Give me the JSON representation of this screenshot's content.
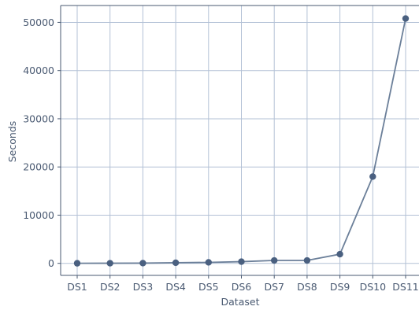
{
  "chart_data": {
    "type": "line",
    "title": "",
    "xlabel": "Dataset",
    "ylabel": "Seconds",
    "categories": [
      "DS1",
      "DS2",
      "DS3",
      "DS4",
      "DS5",
      "DS6",
      "DS7",
      "DS8",
      "DS9",
      "DS10",
      "DS11"
    ],
    "series": [
      {
        "values": [
          10,
          20,
          40,
          120,
          200,
          350,
          600,
          600,
          1900,
          18000,
          50800
        ]
      }
    ],
    "yticks": [
      0,
      10000,
      20000,
      30000,
      40000,
      50000
    ],
    "ylim": [
      -2500,
      53500
    ],
    "grid": true,
    "legend": "none",
    "colors": {
      "line": "#6b7f99",
      "marker": "#4a6080",
      "grid": "#b3c1d6",
      "axis": "#4a5a72",
      "text": "#4a5a72"
    }
  }
}
